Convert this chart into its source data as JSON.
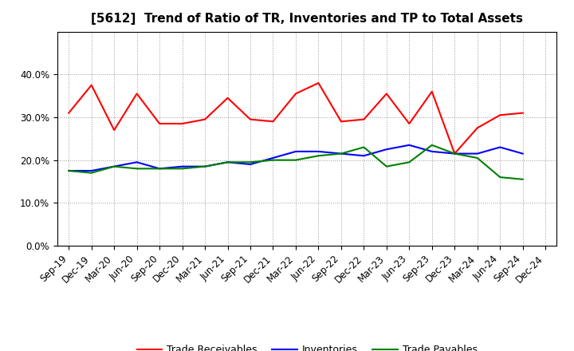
{
  "title": "[5612]  Trend of Ratio of TR, Inventories and TP to Total Assets",
  "x_labels": [
    "Sep-19",
    "Dec-19",
    "Mar-20",
    "Jun-20",
    "Sep-20",
    "Dec-20",
    "Mar-21",
    "Jun-21",
    "Sep-21",
    "Dec-21",
    "Mar-22",
    "Jun-22",
    "Sep-22",
    "Dec-22",
    "Mar-23",
    "Jun-23",
    "Sep-23",
    "Dec-23",
    "Mar-24",
    "Jun-24",
    "Sep-24",
    "Dec-24"
  ],
  "trade_receivables": [
    0.31,
    0.375,
    0.27,
    0.355,
    0.285,
    0.285,
    0.295,
    0.345,
    0.295,
    0.29,
    0.355,
    0.38,
    0.29,
    0.295,
    0.355,
    0.285,
    0.36,
    0.215,
    0.275,
    0.305,
    0.31,
    null
  ],
  "inventories": [
    0.175,
    0.175,
    0.185,
    0.195,
    0.18,
    0.185,
    0.185,
    0.195,
    0.19,
    0.205,
    0.22,
    0.22,
    0.215,
    0.21,
    0.225,
    0.235,
    0.22,
    0.215,
    0.215,
    0.23,
    0.215,
    null
  ],
  "trade_payables": [
    0.175,
    0.17,
    0.185,
    0.18,
    0.18,
    0.18,
    0.185,
    0.195,
    0.195,
    0.2,
    0.2,
    0.21,
    0.215,
    0.23,
    0.185,
    0.195,
    0.235,
    0.215,
    0.205,
    0.16,
    0.155,
    null
  ],
  "tr_color": "#FF0000",
  "inv_color": "#0000FF",
  "tp_color": "#008000",
  "ylim": [
    0.0,
    0.5
  ],
  "yticks": [
    0.0,
    0.1,
    0.2,
    0.3,
    0.4
  ],
  "background_color": "#FFFFFF",
  "grid_color": "#999999",
  "legend_labels": [
    "Trade Receivables",
    "Inventories",
    "Trade Payables"
  ],
  "title_fontsize": 11,
  "tick_fontsize": 8.5,
  "legend_fontsize": 9
}
